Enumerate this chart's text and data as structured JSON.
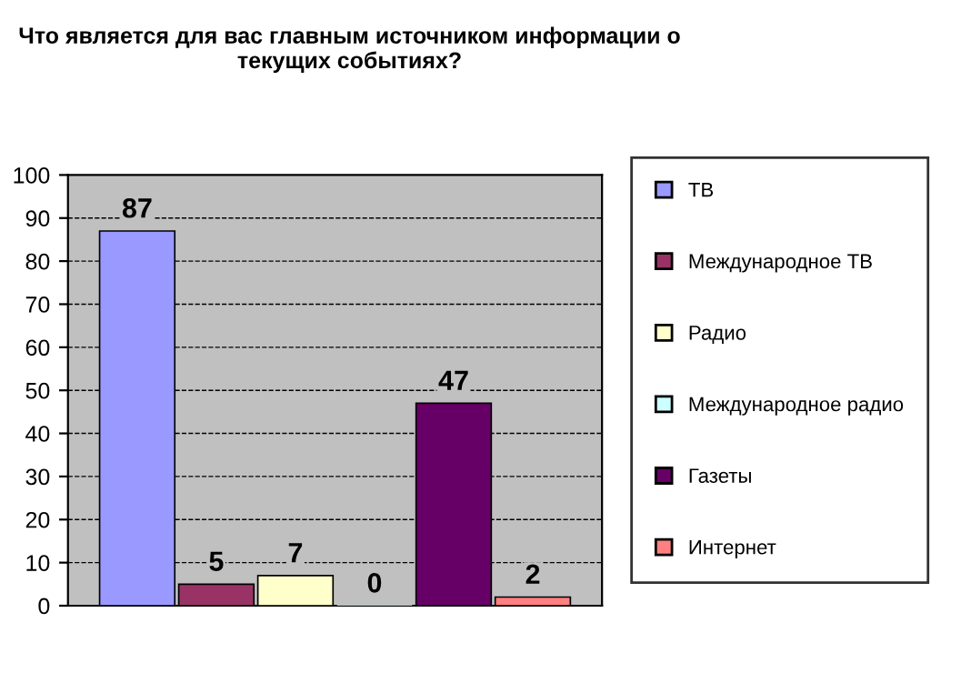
{
  "chart_data": {
    "type": "bar",
    "title": "Что является для вас главным источником информации о текущих событиях?",
    "categories": [
      null
    ],
    "series": [
      {
        "name": "ТВ",
        "color": "#9999ff",
        "values": [
          87
        ]
      },
      {
        "name": "Международное ТВ",
        "color": "#993366",
        "values": [
          5
        ]
      },
      {
        "name": "Радио",
        "color": "#ffffcc",
        "values": [
          7
        ]
      },
      {
        "name": "Международное радио",
        "color": "#ccffff",
        "values": [
          0
        ]
      },
      {
        "name": "Газеты",
        "color": "#660066",
        "values": [
          47
        ]
      },
      {
        "name": "Интернет",
        "color": "#ff8080",
        "values": [
          2
        ]
      }
    ],
    "ylim": [
      0,
      100
    ],
    "yticks": [
      0,
      10,
      20,
      30,
      40,
      50,
      60,
      70,
      80,
      90,
      100
    ],
    "grid": "y",
    "legend": "right",
    "data_labels": true
  }
}
